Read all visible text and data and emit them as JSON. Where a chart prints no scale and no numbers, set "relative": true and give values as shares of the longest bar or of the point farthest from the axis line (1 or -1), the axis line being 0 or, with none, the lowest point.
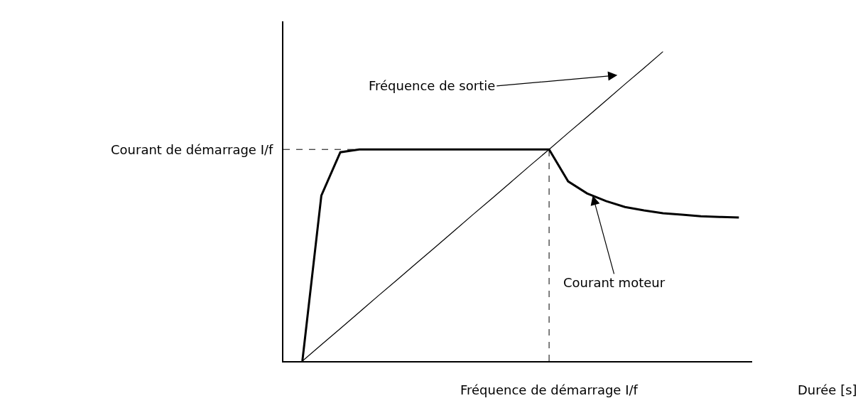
{
  "chart_data": {
    "type": "line",
    "relative": true,
    "xlabel": "Durée [s]",
    "categories": [
      null,
      null,
      null,
      null,
      null,
      null,
      null,
      null,
      null,
      null,
      null,
      null,
      null,
      null,
      null,
      null,
      null,
      null,
      null,
      null,
      null,
      null,
      null,
      null,
      null
    ],
    "series": [
      {
        "color": "#000000",
        "values": [
          null,
          0,
          0.053,
          0.105,
          0.158,
          0.211,
          0.263,
          0.316,
          0.368,
          0.421,
          0.474,
          0.526,
          0.579,
          0.632,
          0.684,
          0.737,
          0.789,
          0.842,
          0.895,
          0.947,
          1.0,
          null,
          null,
          null,
          null
        ]
      },
      {
        "color": "#000000",
        "values": [
          null,
          0,
          0.535,
          0.675,
          0.684,
          0.684,
          0.684,
          0.684,
          0.684,
          0.684,
          0.684,
          0.684,
          0.684,
          0.684,
          0.684,
          0.581,
          0.542,
          0.517,
          0.498,
          0.487,
          0.478,
          0.473,
          0.468,
          0.466,
          0.464
        ]
      }
    ],
    "ref_lines": [
      {
        "axis": "y",
        "value": 0.684,
        "label": "Courant de démarrage I/f",
        "line_style": "dashed"
      }
    ],
    "annotations": [
      "Fréquence de sortie",
      "Courant moteur",
      "Fréquence de démarrage I/f"
    ]
  }
}
